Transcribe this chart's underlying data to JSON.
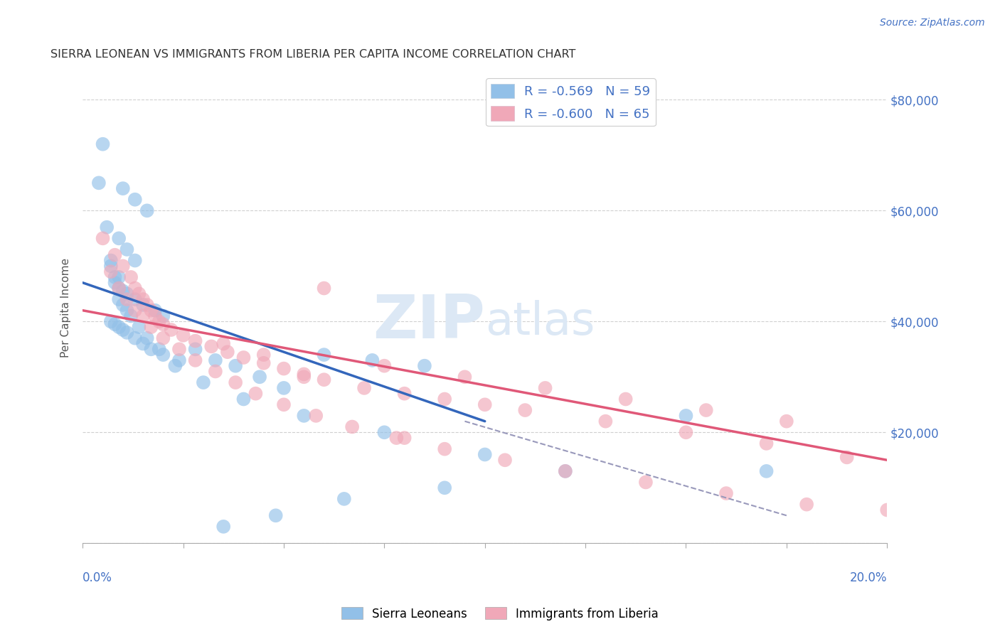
{
  "title": "SIERRA LEONEAN VS IMMIGRANTS FROM LIBERIA PER CAPITA INCOME CORRELATION CHART",
  "source": "Source: ZipAtlas.com",
  "ylabel": "Per Capita Income",
  "yticks": [
    0,
    20000,
    40000,
    60000,
    80000
  ],
  "ytick_labels": [
    "",
    "$20,000",
    "$40,000",
    "$60,000",
    "$80,000"
  ],
  "xlim": [
    0.0,
    0.2
  ],
  "ylim": [
    0,
    85000
  ],
  "watermark_zip": "ZIP",
  "watermark_atlas": "atlas",
  "blue_scatter_x": [
    0.005,
    0.01,
    0.013,
    0.016,
    0.009,
    0.011,
    0.013,
    0.007,
    0.009,
    0.008,
    0.009,
    0.01,
    0.011,
    0.013,
    0.015,
    0.018,
    0.02,
    0.007,
    0.008,
    0.009,
    0.01,
    0.011,
    0.013,
    0.015,
    0.017,
    0.02,
    0.024,
    0.028,
    0.033,
    0.038,
    0.044,
    0.05,
    0.06,
    0.072,
    0.085,
    0.004,
    0.006,
    0.007,
    0.008,
    0.009,
    0.01,
    0.011,
    0.012,
    0.014,
    0.016,
    0.019,
    0.023,
    0.03,
    0.04,
    0.055,
    0.075,
    0.1,
    0.12,
    0.09,
    0.065,
    0.048,
    0.035,
    0.15,
    0.17
  ],
  "blue_scatter_y": [
    72000,
    64000,
    62000,
    60000,
    55000,
    53000,
    51000,
    50000,
    48000,
    47000,
    46000,
    45500,
    45000,
    44000,
    43000,
    42000,
    41000,
    40000,
    39500,
    39000,
    38500,
    38000,
    37000,
    36000,
    35000,
    34000,
    33000,
    35000,
    33000,
    32000,
    30000,
    28000,
    34000,
    33000,
    32000,
    65000,
    57000,
    51000,
    48000,
    44000,
    43000,
    42000,
    41000,
    39000,
    37000,
    35000,
    32000,
    29000,
    26000,
    23000,
    20000,
    16000,
    13000,
    10000,
    8000,
    5000,
    3000,
    23000,
    13000
  ],
  "pink_scatter_x": [
    0.005,
    0.008,
    0.01,
    0.012,
    0.013,
    0.014,
    0.015,
    0.016,
    0.017,
    0.018,
    0.019,
    0.02,
    0.022,
    0.025,
    0.028,
    0.032,
    0.036,
    0.04,
    0.045,
    0.05,
    0.055,
    0.06,
    0.07,
    0.08,
    0.09,
    0.1,
    0.11,
    0.13,
    0.15,
    0.17,
    0.19,
    0.007,
    0.009,
    0.011,
    0.013,
    0.015,
    0.017,
    0.02,
    0.024,
    0.028,
    0.033,
    0.038,
    0.043,
    0.05,
    0.058,
    0.067,
    0.078,
    0.09,
    0.105,
    0.12,
    0.14,
    0.16,
    0.18,
    0.2,
    0.035,
    0.045,
    0.06,
    0.075,
    0.095,
    0.115,
    0.135,
    0.155,
    0.175,
    0.055,
    0.08
  ],
  "pink_scatter_y": [
    55000,
    52000,
    50000,
    48000,
    46000,
    45000,
    44000,
    43000,
    42000,
    41000,
    40000,
    39500,
    38500,
    37500,
    36500,
    35500,
    34500,
    33500,
    32500,
    31500,
    30500,
    29500,
    28000,
    27000,
    26000,
    25000,
    24000,
    22000,
    20000,
    18000,
    15500,
    49000,
    46000,
    44000,
    42000,
    41000,
    39000,
    37000,
    35000,
    33000,
    31000,
    29000,
    27000,
    25000,
    23000,
    21000,
    19000,
    17000,
    15000,
    13000,
    11000,
    9000,
    7000,
    6000,
    36000,
    34000,
    46000,
    32000,
    30000,
    28000,
    26000,
    24000,
    22000,
    30000,
    19000
  ],
  "blue_line_x": [
    0.0,
    0.1
  ],
  "blue_line_y": [
    47000,
    22000
  ],
  "pink_line_x": [
    0.0,
    0.2
  ],
  "pink_line_y": [
    42000,
    15000
  ],
  "dashed_line_x": [
    0.095,
    0.175
  ],
  "dashed_line_y": [
    22000,
    5000
  ],
  "title_color": "#333333",
  "source_color": "#4472c4",
  "tick_color": "#4472c4",
  "grid_color": "#d0d0d0",
  "blue_scatter_color": "#92c0e8",
  "pink_scatter_color": "#f0a8b8",
  "blue_line_color": "#3366bb",
  "pink_line_color": "#e05878",
  "dashed_line_color": "#9999bb",
  "watermark_color": "#dce8f5",
  "background_color": "#ffffff"
}
